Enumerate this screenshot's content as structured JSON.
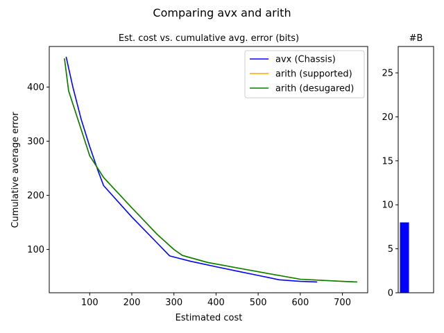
{
  "figure_title": "Comparing avx and arith",
  "chart_data": [
    {
      "type": "line",
      "title": "Est. cost vs. cumulative avg. error (bits)",
      "xlabel": "Estimated cost",
      "ylabel": "Cumulative average error",
      "xlim": [
        4,
        760
      ],
      "ylim": [
        20,
        475
      ],
      "xticks": [
        100,
        200,
        300,
        400,
        500,
        600,
        700
      ],
      "yticks": [
        100,
        200,
        300,
        400
      ],
      "grid": false,
      "legend_position": "top-right",
      "series": [
        {
          "name": "avx (Chassis)",
          "color": "#0000ff",
          "x": [
            44,
            60,
            80,
            100,
            120,
            133,
            200,
            250,
            290,
            340,
            400,
            450,
            500,
            550,
            600,
            640
          ],
          "y": [
            456,
            400,
            340,
            290,
            245,
            218,
            160,
            120,
            88,
            78,
            68,
            60,
            52,
            44,
            41,
            40
          ]
        },
        {
          "name": "arith (supported)",
          "color": "#ffa500",
          "x": [
            40,
            50,
            75,
            100,
            133,
            200,
            260,
            300,
            320,
            380,
            450,
            520,
            600,
            700,
            735
          ],
          "y": [
            453,
            393,
            333,
            273,
            233,
            177,
            128,
            100,
            89,
            76,
            66,
            56,
            45,
            41,
            40
          ]
        },
        {
          "name": "arith (desugared)",
          "color": "#008000",
          "x": [
            40,
            50,
            75,
            100,
            133,
            200,
            260,
            300,
            320,
            380,
            450,
            520,
            600,
            700,
            735
          ],
          "y": [
            453,
            393,
            333,
            273,
            233,
            177,
            128,
            100,
            89,
            76,
            66,
            56,
            45,
            41,
            40
          ]
        }
      ]
    },
    {
      "type": "bar",
      "title": "#B",
      "categories": [
        ""
      ],
      "values": [
        8
      ],
      "color": "#0000ff",
      "ylim": [
        0,
        28
      ],
      "yticks": [
        0,
        5,
        10,
        15,
        20,
        25
      ]
    }
  ]
}
